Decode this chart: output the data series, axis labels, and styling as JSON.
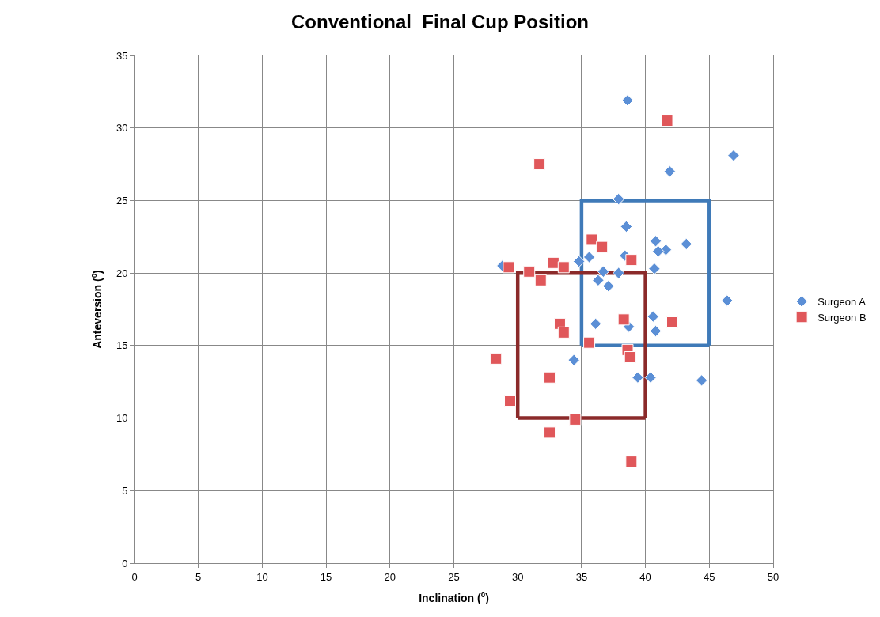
{
  "chart_data": {
    "type": "scatter",
    "title": "Conventional  Final Cup Position",
    "xlabel": "Inclination ($^{0}$)",
    "ylabel": "Anteversion ($^{0}$)",
    "xlim": [
      0,
      50
    ],
    "xticks": [
      0,
      5,
      10,
      15,
      20,
      25,
      30,
      35,
      40,
      45,
      50
    ],
    "ylim": [
      0,
      35
    ],
    "yticks": [
      0,
      5,
      10,
      15,
      20,
      25,
      30,
      35
    ],
    "grid": true,
    "legend": "right",
    "series": [
      {
        "name": "Surgeon A",
        "color": "#5b8fd6",
        "marker": "diamond",
        "x": [
          38.6,
          46.9,
          41.9,
          37.9,
          38.5,
          40.8,
          43.2,
          41.6,
          41.0,
          35.6,
          38.4,
          34.8,
          40.7,
          36.7,
          37.9,
          36.3,
          37.1,
          28.8,
          46.4,
          40.6,
          36.1,
          38.7,
          40.8,
          34.4,
          39.4,
          40.4,
          44.4
        ],
        "values": [
          31.9,
          28.1,
          27.0,
          25.1,
          23.2,
          22.2,
          22.0,
          21.6,
          21.5,
          21.1,
          21.2,
          20.8,
          20.3,
          20.1,
          20.0,
          19.5,
          19.1,
          20.5,
          18.1,
          17.0,
          16.5,
          16.3,
          16.0,
          14.0,
          12.8,
          12.8,
          12.6
        ]
      },
      {
        "name": "Surgeon B",
        "color": "#e0575a",
        "marker": "square",
        "x": [
          41.7,
          31.7,
          35.8,
          36.6,
          29.3,
          30.9,
          32.8,
          33.6,
          31.8,
          38.9,
          33.3,
          33.6,
          38.3,
          42.1,
          35.6,
          38.6,
          38.8,
          28.3,
          32.5,
          29.4,
          34.5,
          32.5,
          38.9
        ],
        "values": [
          30.5,
          27.5,
          22.3,
          21.8,
          20.4,
          20.1,
          20.7,
          20.4,
          19.5,
          20.9,
          16.5,
          15.9,
          16.8,
          16.6,
          15.2,
          14.7,
          14.2,
          14.1,
          12.8,
          11.2,
          9.9,
          9.0,
          7.0
        ]
      },
      {
        "type": "line",
        "color": "#3f7ab8",
        "marker": "none",
        "x": [
          35,
          35,
          45,
          45
        ],
        "values": [
          15,
          25,
          25,
          15
        ]
      },
      {
        "type": "line",
        "color": "#3f7ab8",
        "marker": "none",
        "x": [
          35,
          45
        ],
        "values": [
          15,
          15
        ]
      },
      {
        "type": "line",
        "color": "#8b2a2a",
        "marker": "none",
        "x": [
          30,
          30,
          40,
          40
        ],
        "values": [
          10,
          20,
          20,
          10
        ]
      },
      {
        "type": "line",
        "color": "#8b2a2a",
        "marker": "none",
        "x": [
          30,
          40
        ],
        "values": [
          10,
          10
        ]
      }
    ]
  }
}
